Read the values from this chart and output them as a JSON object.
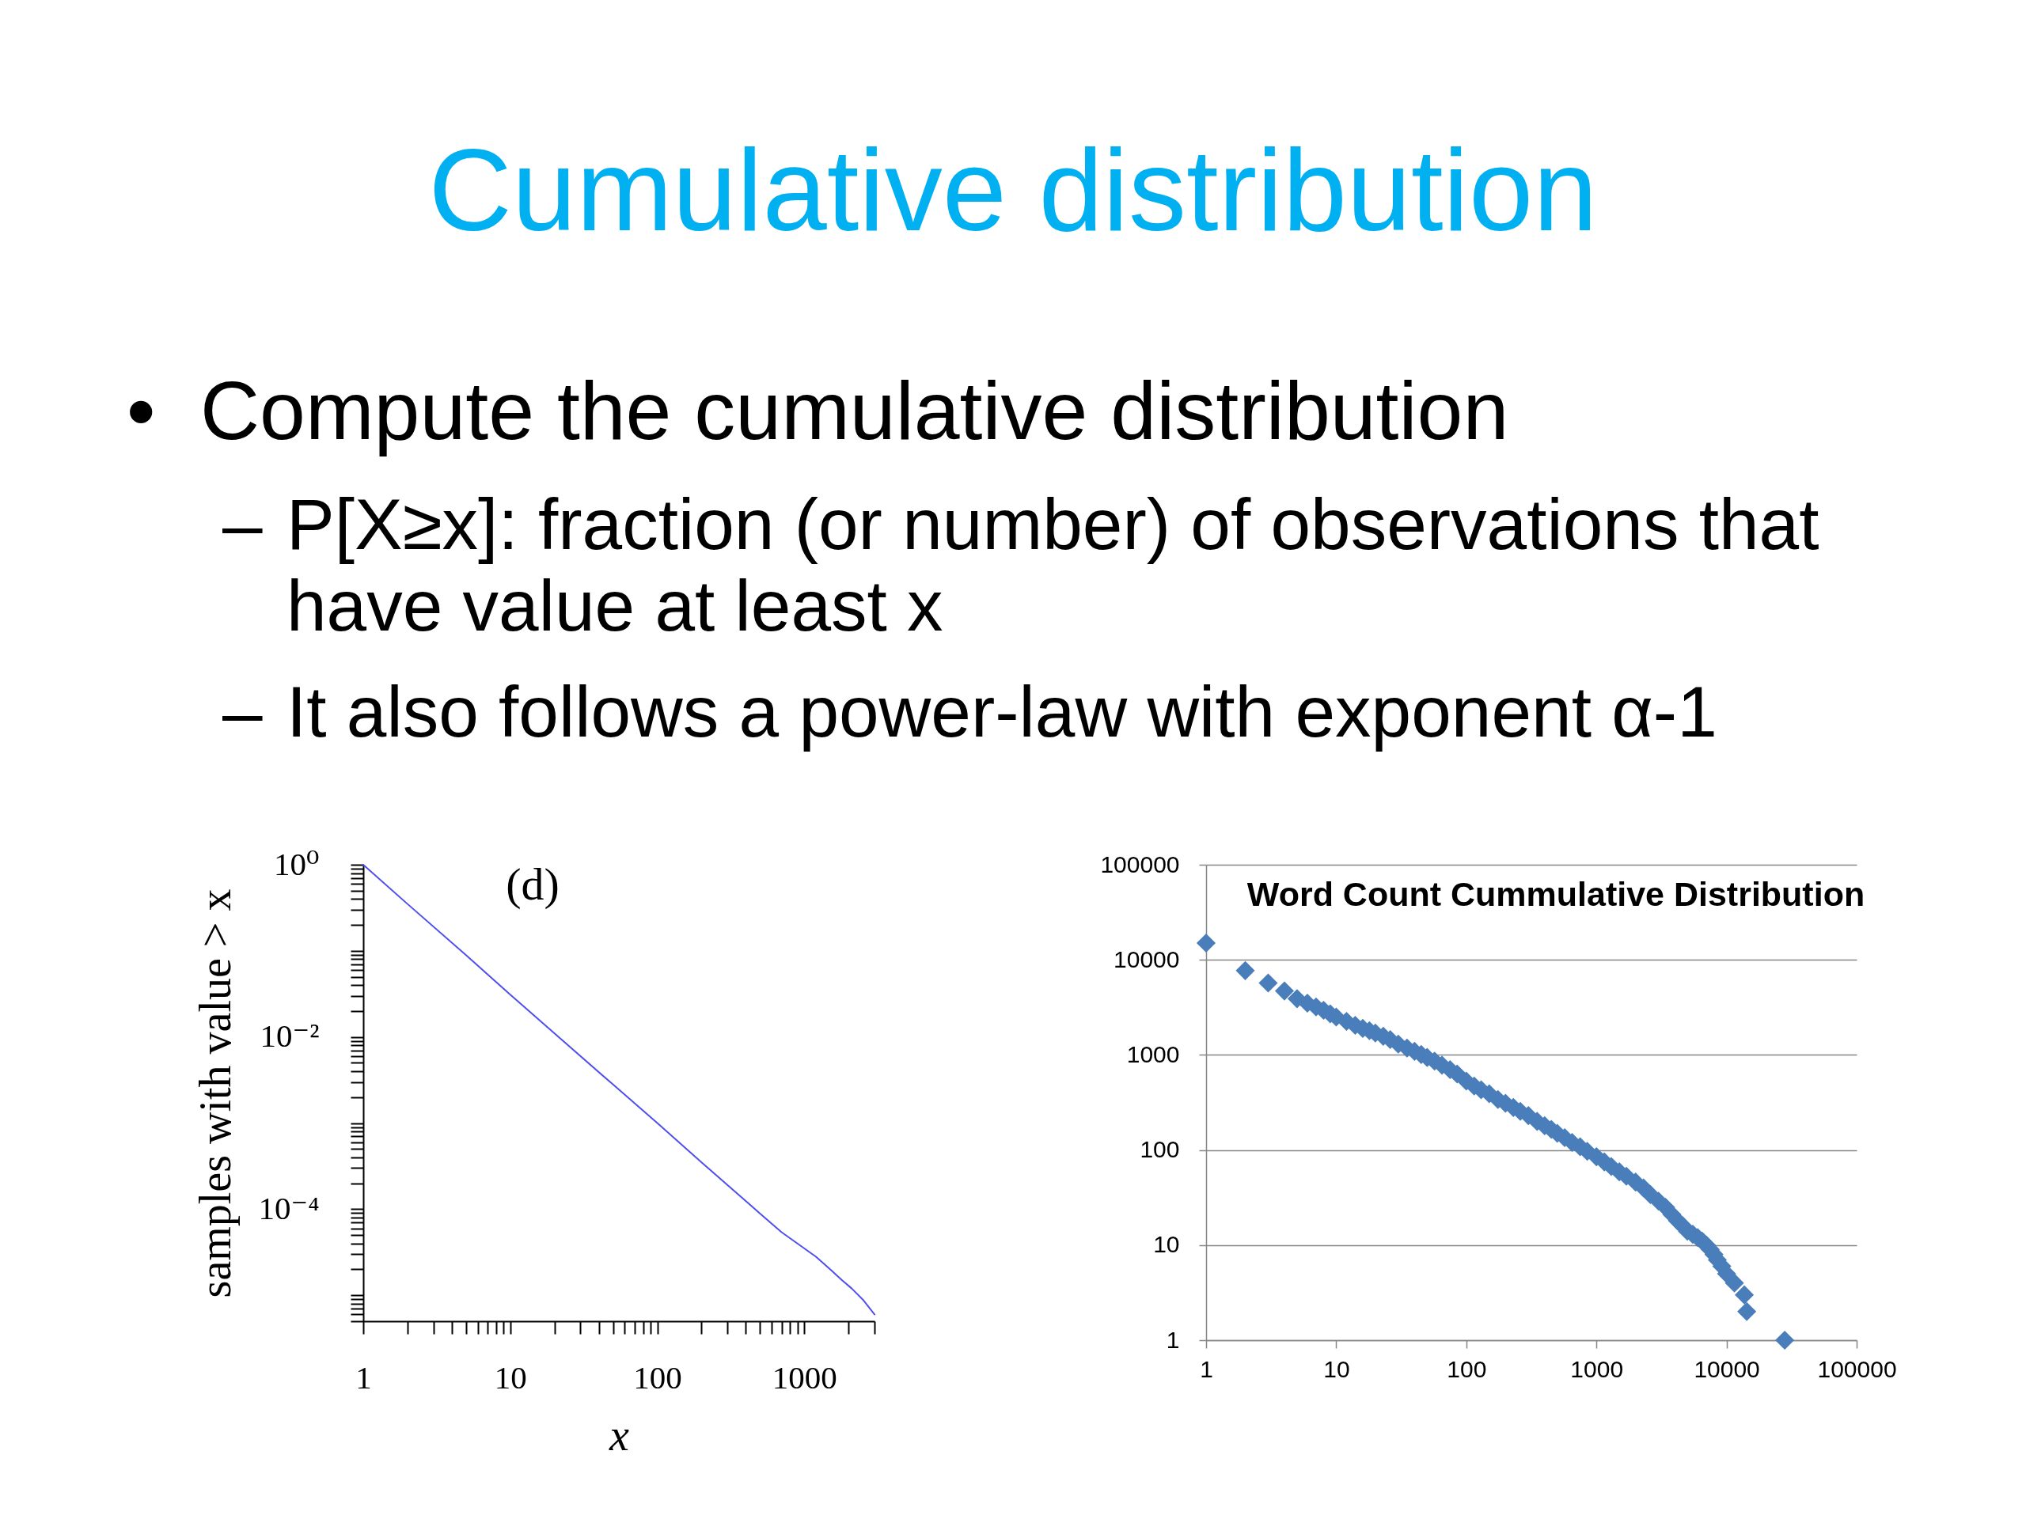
{
  "chart_data": [
    {
      "type": "other",
      "title": "Cumulative distribution",
      "annotations": [
        "• Compute the cumulative distribution",
        "– P[X≥x]: fraction (or number) of observations that have value at least x",
        "– It also follows a power-law with exponent α-1"
      ]
    },
    {
      "type": "line",
      "xlabel": "x",
      "ylabel": "samples with value > x",
      "annotations": [
        "(d)"
      ],
      "x": [
        1,
        2,
        5,
        10,
        20,
        50,
        100,
        200,
        500,
        700,
        1000,
        1200,
        1500,
        1800,
        2100,
        2500,
        3000
      ],
      "series": [
        {
          "color": "#4f4ff0",
          "values": [
            1,
            0.35,
            0.089,
            0.031,
            0.011,
            0.0028,
            0.001,
            0.00035,
            8.9e-05,
            5.4e-05,
            3.5e-05,
            2.8e-05,
            2e-05,
            1.5e-05,
            1.2e-05,
            8.9e-06,
            6e-06
          ]
        }
      ],
      "log": "xy",
      "xlim": [
        1,
        3000
      ],
      "ylim": [
        5e-06,
        1
      ],
      "xticks": [
        1,
        {
          "value": 2,
          "label": null
        },
        {
          "value": 3,
          "label": null
        },
        {
          "value": 4,
          "label": null
        },
        {
          "value": 5,
          "label": null
        },
        {
          "value": 6,
          "label": null
        },
        {
          "value": 7,
          "label": null
        },
        {
          "value": 8,
          "label": null
        },
        {
          "value": 9,
          "label": null
        },
        10,
        {
          "value": 20,
          "label": null
        },
        {
          "value": 30,
          "label": null
        },
        {
          "value": 40,
          "label": null
        },
        {
          "value": 50,
          "label": null
        },
        {
          "value": 60,
          "label": null
        },
        {
          "value": 70,
          "label": null
        },
        {
          "value": 80,
          "label": null
        },
        {
          "value": 90,
          "label": null
        },
        100,
        {
          "value": 200,
          "label": null
        },
        {
          "value": 300,
          "label": null
        },
        {
          "value": 400,
          "label": null
        },
        {
          "value": 500,
          "label": null
        },
        {
          "value": 600,
          "label": null
        },
        {
          "value": 700,
          "label": null
        },
        {
          "value": 800,
          "label": null
        },
        {
          "value": 900,
          "label": null
        },
        1000,
        {
          "value": 2000,
          "label": null
        },
        {
          "value": 3000,
          "label": null
        }
      ],
      "yticks": [
        {
          "value": 5e-06,
          "label": null
        },
        {
          "value": 6e-06,
          "label": null
        },
        {
          "value": 7e-06,
          "label": null
        },
        {
          "value": 8e-06,
          "label": null
        },
        {
          "value": 9e-06,
          "label": null
        },
        {
          "value": 1e-05,
          "label": null
        },
        {
          "value": 2e-05,
          "label": null
        },
        {
          "value": 3e-05,
          "label": null
        },
        {
          "value": 4e-05,
          "label": null
        },
        {
          "value": 5e-05,
          "label": null
        },
        {
          "value": 6e-05,
          "label": null
        },
        {
          "value": 7e-05,
          "label": null
        },
        {
          "value": 8e-05,
          "label": null
        },
        {
          "value": 9e-05,
          "label": null
        },
        {
          "value": 0.0001,
          "label": "10⁻⁴"
        },
        {
          "value": 0.0002,
          "label": null
        },
        {
          "value": 0.0003,
          "label": null
        },
        {
          "value": 0.0004,
          "label": null
        },
        {
          "value": 0.0005,
          "label": null
        },
        {
          "value": 0.0006,
          "label": null
        },
        {
          "value": 0.0007,
          "label": null
        },
        {
          "value": 0.0008,
          "label": null
        },
        {
          "value": 0.0009,
          "label": null
        },
        {
          "value": 0.001,
          "label": null
        },
        {
          "value": 0.002,
          "label": null
        },
        {
          "value": 0.003,
          "label": null
        },
        {
          "value": 0.004,
          "label": null
        },
        {
          "value": 0.005,
          "label": null
        },
        {
          "value": 0.006,
          "label": null
        },
        {
          "value": 0.007,
          "label": null
        },
        {
          "value": 0.008,
          "label": null
        },
        {
          "value": 0.009,
          "label": null
        },
        {
          "value": 0.01,
          "label": "10⁻²"
        },
        {
          "value": 0.02,
          "label": null
        },
        {
          "value": 0.03,
          "label": null
        },
        {
          "value": 0.04,
          "label": null
        },
        {
          "value": 0.05,
          "label": null
        },
        {
          "value": 0.06,
          "label": null
        },
        {
          "value": 0.07,
          "label": null
        },
        {
          "value": 0.08,
          "label": null
        },
        {
          "value": 0.09,
          "label": null
        },
        {
          "value": 0.1,
          "label": null
        },
        {
          "value": 0.2,
          "label": null
        },
        {
          "value": 0.3,
          "label": null
        },
        {
          "value": 0.4,
          "label": null
        },
        {
          "value": 0.5,
          "label": null
        },
        {
          "value": 0.6,
          "label": null
        },
        {
          "value": 0.7,
          "label": null
        },
        {
          "value": 0.8,
          "label": null
        },
        {
          "value": 0.9,
          "label": null
        },
        {
          "value": 1,
          "label": "10⁰"
        }
      ]
    },
    {
      "type": "scatter",
      "title": "Word Count Cummulative Distribution",
      "x": [
        1,
        2,
        3,
        4,
        5,
        6,
        7,
        8,
        9,
        10,
        12,
        14,
        16,
        18,
        20,
        23,
        26,
        30,
        35,
        40,
        45,
        50,
        57,
        65,
        75,
        85,
        100,
        115,
        130,
        150,
        175,
        200,
        230,
        260,
        300,
        350,
        400,
        450,
        500,
        570,
        650,
        750,
        850,
        1000,
        1150,
        1300,
        1500,
        1700,
        2000,
        2300,
        2600,
        3000,
        3400,
        3800,
        4200,
        4600,
        5000,
        5500,
        6000,
        6500,
        7000,
        7500,
        8000,
        8500,
        9200,
        10000,
        11500,
        13700,
        14300,
        28000
      ],
      "series": [
        {
          "color": "#4a7ebb",
          "values": [
            15000,
            7700,
            5700,
            4700,
            3900,
            3500,
            3200,
            2950,
            2700,
            2500,
            2250,
            2050,
            1900,
            1800,
            1700,
            1570,
            1450,
            1300,
            1180,
            1090,
            1010,
            940,
            860,
            780,
            700,
            630,
            530,
            470,
            430,
            390,
            340,
            310,
            280,
            255,
            230,
            200,
            180,
            165,
            150,
            135,
            120,
            108,
            97,
            85,
            75,
            67,
            59,
            53,
            46,
            40,
            34,
            29,
            25,
            21,
            18,
            16,
            14,
            13,
            12,
            11,
            10,
            9,
            8,
            7,
            6,
            5,
            4,
            3,
            2,
            1
          ]
        }
      ],
      "marker": "diamond",
      "log": "xy",
      "xlim": [
        1,
        100000
      ],
      "ylim": [
        1,
        100000
      ],
      "xticks": [
        1,
        10,
        100,
        1000,
        10000,
        100000
      ],
      "yticks": [
        1,
        10,
        100,
        1000,
        10000,
        100000
      ],
      "grid": "y"
    }
  ]
}
